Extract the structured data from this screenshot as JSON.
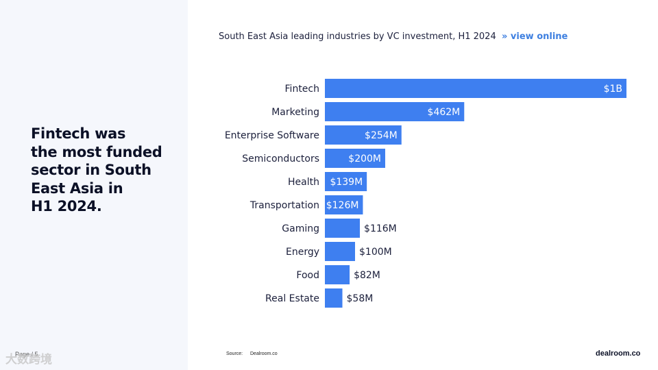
{
  "headline": "Fintech was\nthe most funded\nsector in South\nEast Asia in\nH1 2024.",
  "page_label": "Page / 5",
  "watermark": "大数跨境",
  "link_text": "» view online",
  "source_label": "Source:",
  "source_value": "Dealroom.co",
  "brand": "dealroom.co",
  "colors": {
    "bar": "#3e7ff0",
    "panel": "#f5f7fc",
    "accent": "#3d7fe0"
  },
  "chart_data": {
    "type": "bar",
    "orientation": "horizontal",
    "title": "South East Asia leading industries by VC investment, H1 2024",
    "categories": [
      "Fintech",
      "Marketing",
      "Enterprise Software",
      "Semiconductors",
      "Health",
      "Transportation",
      "Gaming",
      "Energy",
      "Food",
      "Real Estate"
    ],
    "values": [
      1000,
      462,
      254,
      200,
      139,
      126,
      116,
      100,
      82,
      58
    ],
    "unit": "$M",
    "labels": [
      "$1B",
      "$462M",
      "$254M",
      "$200M",
      "$139M",
      "$126M",
      "$116M",
      "$100M",
      "$82M",
      "$58M"
    ],
    "xlim": [
      0,
      1000
    ],
    "grid": false,
    "legend": "none"
  }
}
